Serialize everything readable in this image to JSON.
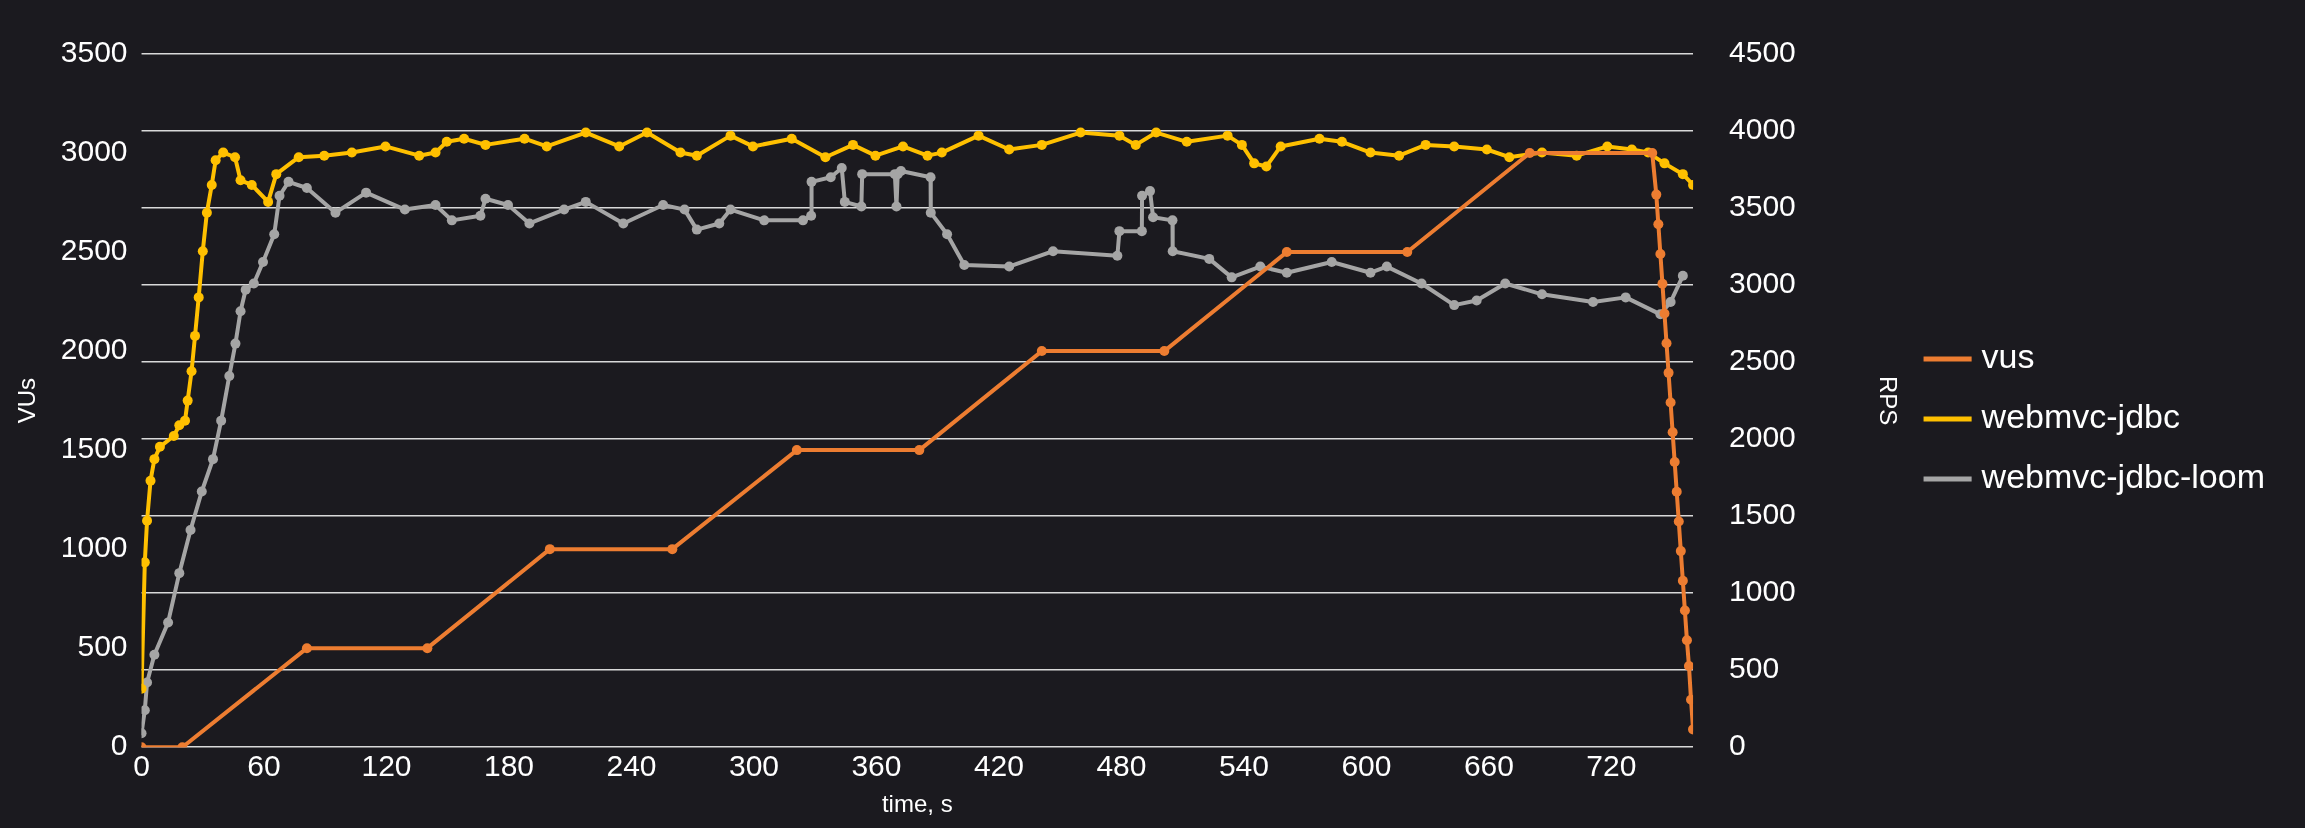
{
  "chart_data": {
    "type": "line",
    "xlabel": "time, s",
    "ylabel": "VUs",
    "y2label": "RPS",
    "xlim": [
      0,
      760
    ],
    "xticks": [
      0,
      60,
      120,
      180,
      240,
      300,
      360,
      420,
      480,
      540,
      600,
      660,
      720
    ],
    "ylim": [
      0,
      3500
    ],
    "yticks": [
      0,
      500,
      1000,
      1500,
      2000,
      2500,
      3000,
      3500
    ],
    "y2lim": [
      0,
      4500
    ],
    "y2ticks": [
      0,
      500,
      1000,
      1500,
      2000,
      2500,
      3000,
      3500,
      4000,
      4500
    ],
    "grid": "y2",
    "legend": "right",
    "marker": "circle",
    "series": [
      {
        "name": "vus",
        "color": "#ed7d31",
        "x": [
          0,
          20,
          81,
          140,
          200,
          260,
          321,
          381,
          441,
          501,
          561,
          620,
          680,
          740,
          742,
          743,
          744,
          745,
          746,
          747,
          748,
          749,
          750,
          751,
          752,
          753,
          754,
          755,
          756,
          757,
          758,
          759,
          760
        ],
        "values": [
          0,
          0,
          500,
          500,
          1000,
          1000,
          1500,
          1500,
          2000,
          2000,
          2500,
          2500,
          3000,
          3000,
          2790,
          2640,
          2490,
          2340,
          2190,
          2040,
          1890,
          1740,
          1590,
          1440,
          1290,
          1140,
          990,
          840,
          690,
          540,
          410,
          240,
          90
        ]
      },
      {
        "name": "webmvc-jdbc",
        "color": "#ffc000",
        "axis": "y2",
        "x": [
          0,
          1.6,
          2.7,
          4.4,
          6.3,
          9,
          15.8,
          18.5,
          21.3,
          22.6,
          24.5,
          26.2,
          28,
          30,
          32,
          34.4,
          36.3,
          40,
          45.8,
          48.5,
          54,
          62,
          66,
          77,
          89.5,
          103,
          119.5,
          136,
          144,
          149.5,
          158,
          168.5,
          187.6,
          198.5,
          217.6,
          234,
          247.6,
          264,
          272,
          288.5,
          299.5,
          318.5,
          335,
          348.5,
          359.5,
          373,
          385,
          392,
          410,
          425,
          441,
          460,
          479,
          487,
          497,
          512,
          532,
          539,
          545,
          551,
          558,
          577,
          588,
          602,
          616,
          629,
          643,
          659,
          670,
          686,
          703,
          718,
          730,
          738,
          746,
          755,
          760
        ],
        "values": [
          380,
          1200,
          1470,
          1730,
          1870,
          1950,
          2020,
          2090,
          2120,
          2250,
          2440,
          2670,
          2920,
          3220,
          3470,
          3650,
          3810,
          3860,
          3830,
          3680,
          3650,
          3540,
          3720,
          3830,
          3840,
          3860,
          3900,
          3840,
          3860,
          3930,
          3950,
          3910,
          3950,
          3900,
          3990,
          3900,
          3990,
          3860,
          3840,
          3970,
          3900,
          3950,
          3830,
          3910,
          3840,
          3900,
          3840,
          3860,
          3970,
          3880,
          3910,
          3990,
          3970,
          3910,
          3990,
          3930,
          3970,
          3910,
          3790,
          3770,
          3900,
          3950,
          3930,
          3860,
          3840,
          3910,
          3900,
          3880,
          3830,
          3860,
          3840,
          3900,
          3880,
          3860,
          3790,
          3720,
          3650
        ]
      },
      {
        "name": "webmvc-jdbc-loom",
        "color": "#a5a5a5",
        "axis": "y2",
        "x": [
          0,
          1.6,
          2.7,
          6.3,
          13,
          18.5,
          24,
          29.5,
          35,
          39,
          43,
          46,
          48.5,
          51,
          55,
          59.5,
          65,
          67.6,
          72,
          81,
          95,
          110,
          129,
          144,
          152,
          166,
          168.5,
          179.5,
          190,
          207,
          217.6,
          236,
          255.5,
          266,
          272,
          283,
          288.5,
          305,
          324,
          328,
          328.2,
          337.6,
          343,
          344.5,
          352.6,
          353,
          369,
          369.8,
          370.4,
          372,
          386.5,
          386.6,
          394.6,
          403,
          425,
          446.5,
          478,
          479,
          490,
          490.1,
          494,
          495.5,
          505,
          505.1,
          523,
          534,
          548,
          561,
          583,
          602,
          610,
          627,
          643,
          654,
          668,
          686,
          711,
          727,
          744,
          749,
          755
        ],
        "values": [
          90,
          240,
          420,
          600,
          810,
          1130,
          1410,
          1660,
          1870,
          2120,
          2410,
          2620,
          2830,
          2970,
          3010,
          3150,
          3330,
          3580,
          3670,
          3630,
          3470,
          3600,
          3490,
          3520,
          3420,
          3450,
          3560,
          3520,
          3400,
          3490,
          3540,
          3400,
          3520,
          3490,
          3360,
          3400,
          3490,
          3420,
          3420,
          3450,
          3670,
          3700,
          3760,
          3540,
          3510,
          3720,
          3720,
          3510,
          3720,
          3740,
          3700,
          3470,
          3330,
          3130,
          3120,
          3220,
          3190,
          3350,
          3350,
          3580,
          3610,
          3440,
          3420,
          3220,
          3170,
          3050,
          3120,
          3080,
          3150,
          3080,
          3120,
          3010,
          2870,
          2900,
          3010,
          2940,
          2890,
          2920,
          2810,
          2890,
          3060
        ]
      }
    ]
  }
}
